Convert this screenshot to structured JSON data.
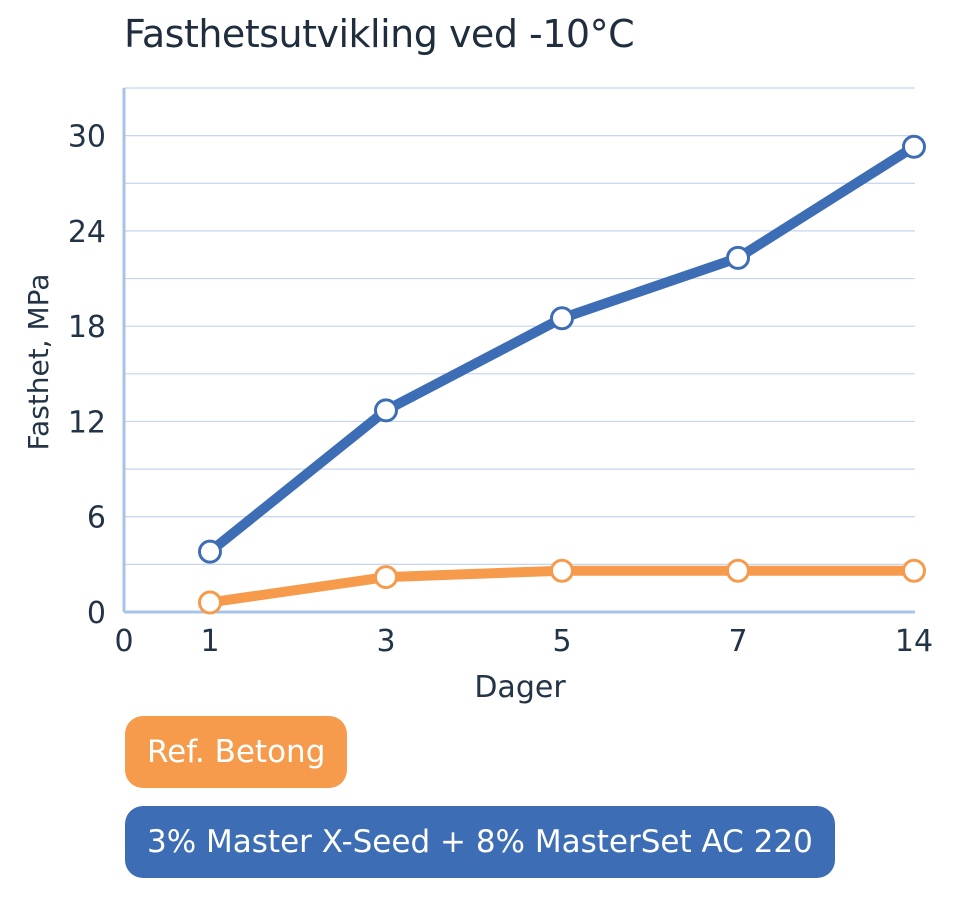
{
  "chart_data": {
    "type": "line",
    "title": "Fasthetsutvikling ved -10°C",
    "xlabel": "Dager",
    "ylabel": "Fasthet, MPa",
    "x_origin_label": "0",
    "categories": [
      "1",
      "3",
      "5",
      "7",
      "14"
    ],
    "ylim": [
      0,
      33
    ],
    "yticks": [
      "0",
      "6",
      "12",
      "18",
      "24",
      "30"
    ],
    "grid": true,
    "legend_position": "bottom-left",
    "series": [
      {
        "name": "Ref. Betong",
        "color": "#f59b4b",
        "values": [
          0.6,
          2.2,
          2.6,
          2.6,
          2.6
        ]
      },
      {
        "name": "3% Master X-Seed + 8% MasterSet AC 220",
        "color": "#3d6db5",
        "values": [
          3.8,
          12.7,
          18.5,
          22.3,
          29.3
        ]
      }
    ]
  },
  "colors": {
    "axis": "#a9c3e6",
    "grid": "#c5d5ee",
    "text": "#243447"
  }
}
